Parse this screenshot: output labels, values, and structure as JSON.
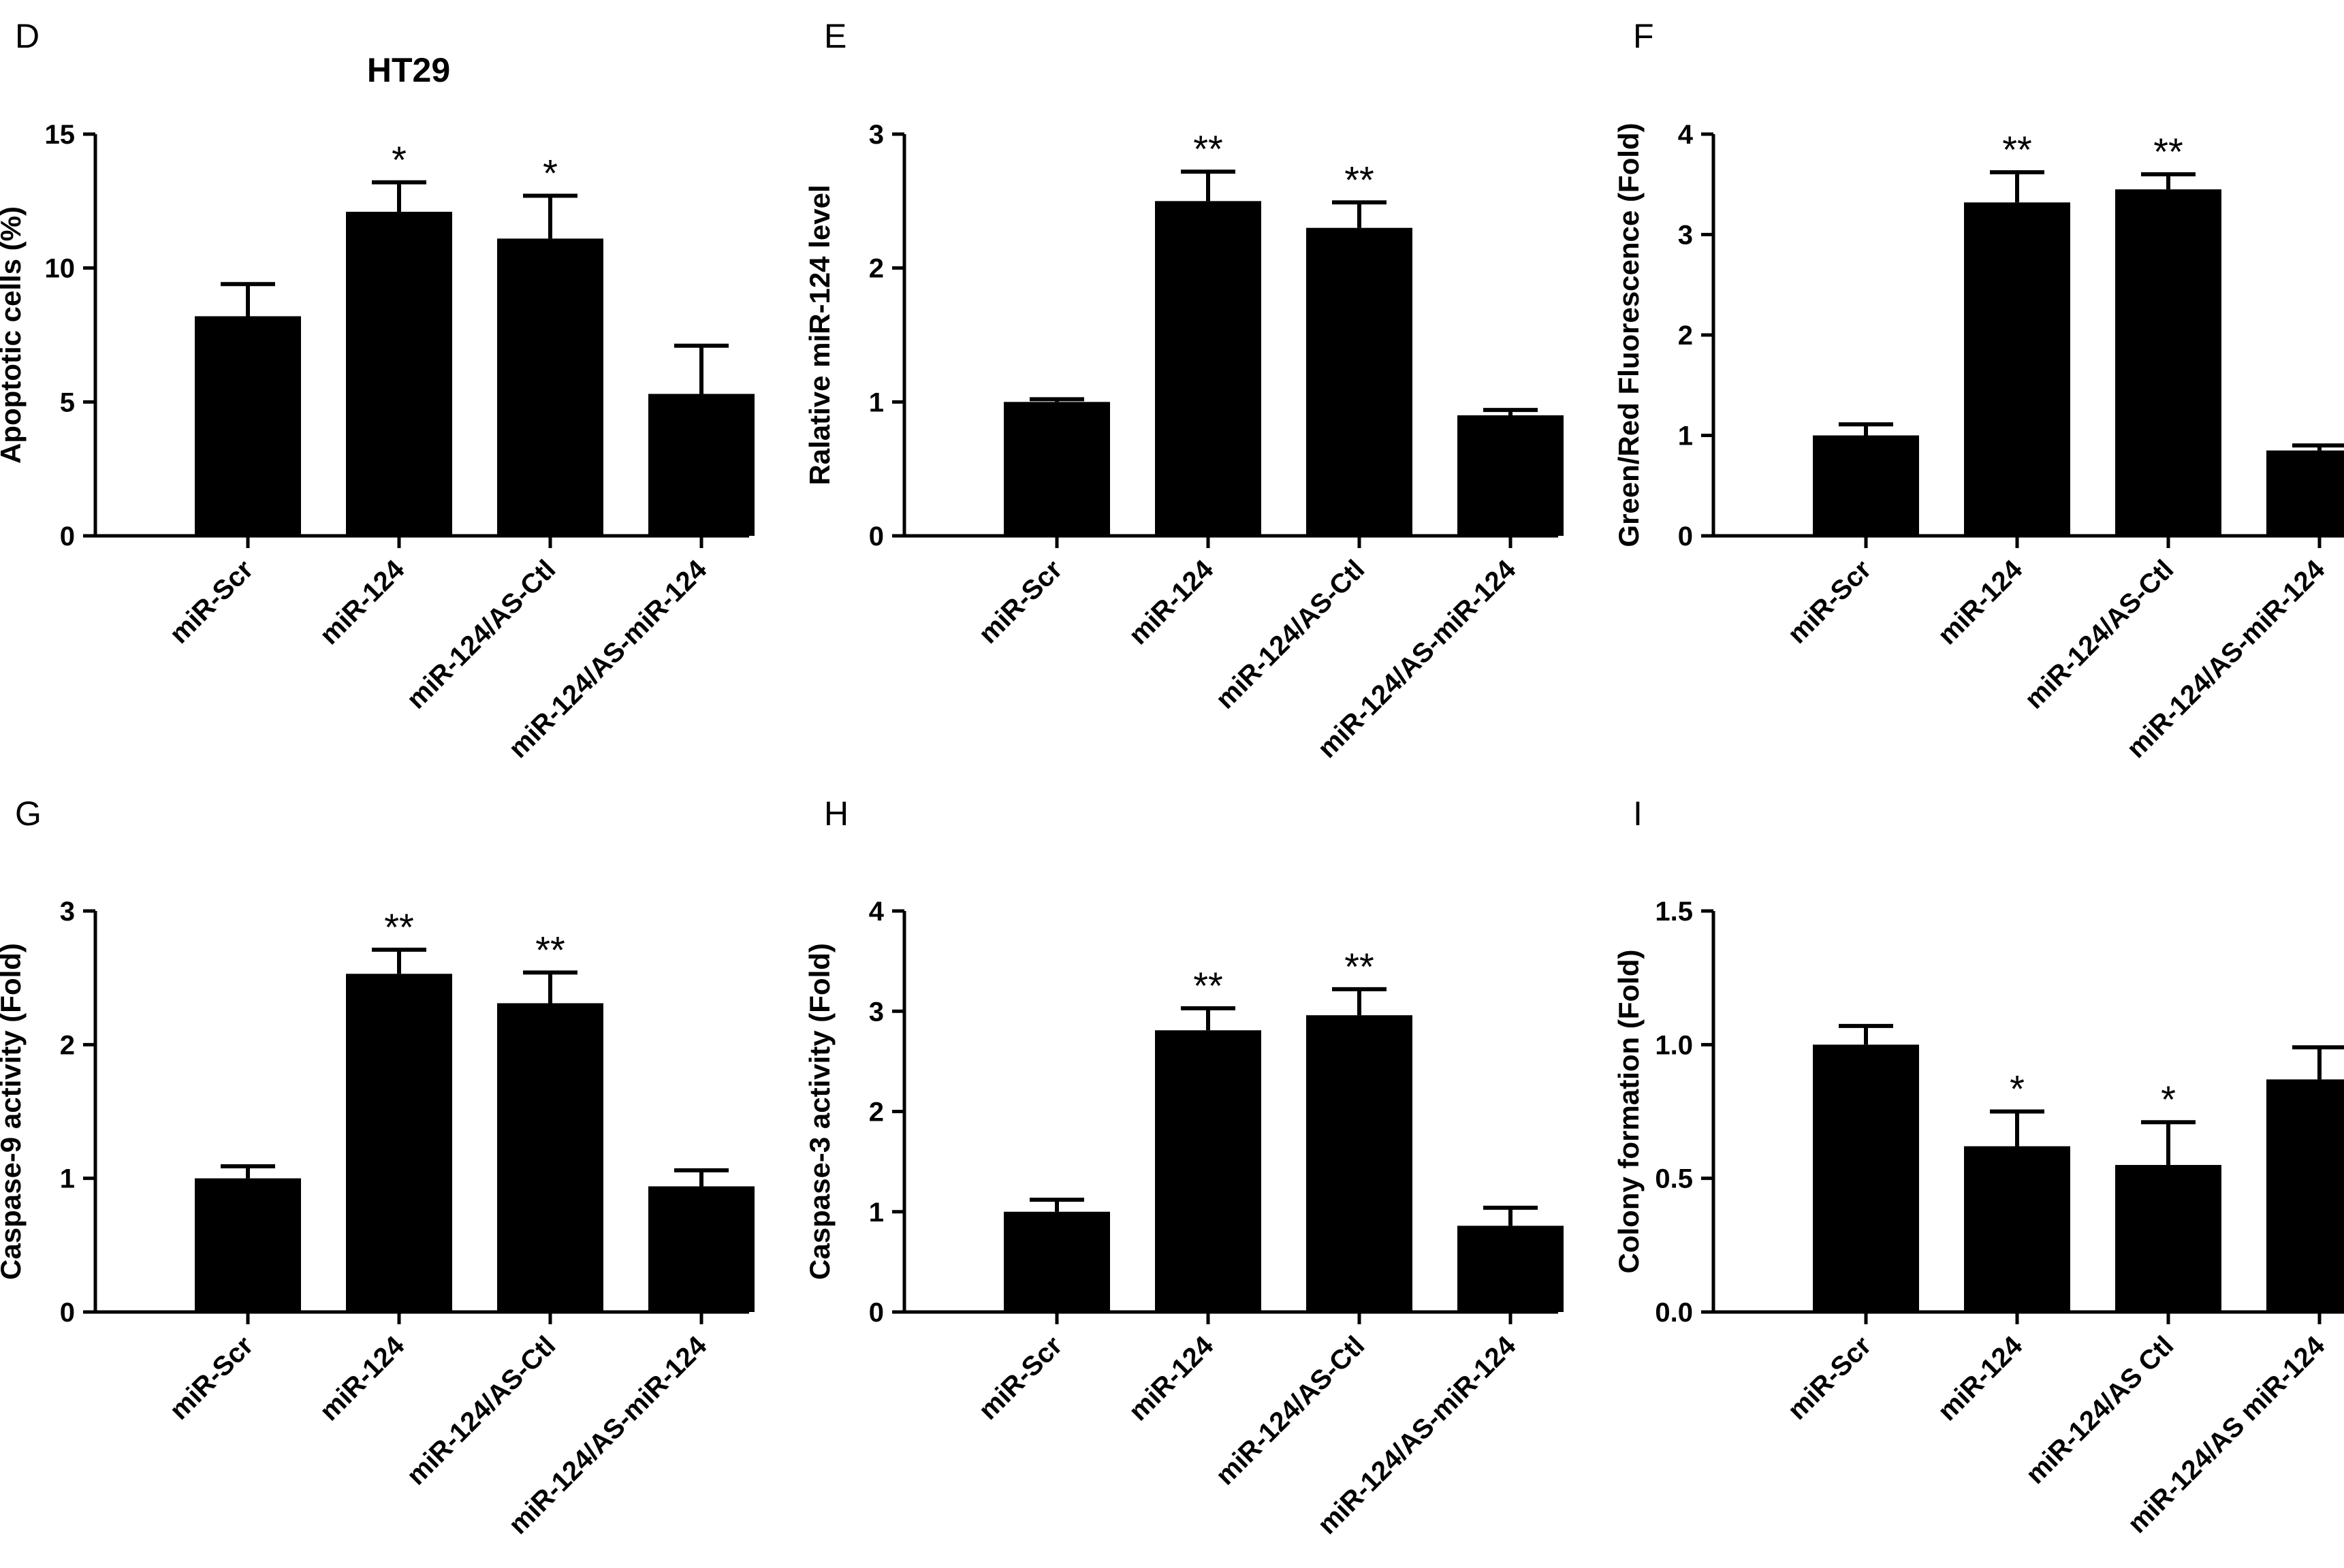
{
  "chart_data": [
    {
      "panel_letter": "D",
      "title": "HT29",
      "type": "bar",
      "ylabel": "Apoptotic cells (%)",
      "xlabel": "",
      "ylim": [
        0,
        15
      ],
      "yticks": [
        "0",
        "5",
        "10",
        "15"
      ],
      "categories": [
        "miR-Scr",
        "miR-124",
        "miR-124/AS-Ctl",
        "miR-124/AS-miR-124"
      ],
      "values": [
        8.2,
        12.1,
        11.1,
        5.3
      ],
      "errors": [
        1.2,
        1.1,
        1.6,
        1.8
      ],
      "annotations": [
        "",
        "*",
        "*",
        ""
      ]
    },
    {
      "panel_letter": "E",
      "title": "",
      "type": "bar",
      "ylabel": "Ralative miR-124 level",
      "xlabel": "",
      "ylim": [
        0,
        3
      ],
      "yticks": [
        "0",
        "1",
        "2",
        "3"
      ],
      "categories": [
        "miR-Scr",
        "miR-124",
        "miR-124/AS-Ctl",
        "miR-124/AS-miR-124"
      ],
      "values": [
        1.0,
        2.5,
        2.3,
        0.9
      ],
      "errors": [
        0.02,
        0.22,
        0.19,
        0.04
      ],
      "annotations": [
        "",
        "**",
        "**",
        ""
      ]
    },
    {
      "panel_letter": "F",
      "title": "",
      "type": "bar",
      "ylabel": "Green/Red Fluorescence (Fold)",
      "xlabel": "",
      "ylim": [
        0,
        4
      ],
      "yticks": [
        "0",
        "1",
        "2",
        "3",
        "4"
      ],
      "categories": [
        "miR-Scr",
        "miR-124",
        "miR-124/AS-Ctl",
        "miR-124/AS-miR-124"
      ],
      "values": [
        1.0,
        3.32,
        3.45,
        0.85
      ],
      "errors": [
        0.11,
        0.3,
        0.15,
        0.05
      ],
      "annotations": [
        "",
        "**",
        "**",
        ""
      ]
    },
    {
      "panel_letter": "G",
      "title": "",
      "type": "bar",
      "ylabel": "Caspase-9 activity (Fold)",
      "xlabel": "",
      "ylim": [
        0,
        3
      ],
      "yticks": [
        "0",
        "1",
        "2",
        "3"
      ],
      "categories": [
        "miR-Scr",
        "miR-124",
        "miR-124/AS-Ctl",
        "miR-124/AS-miR-124"
      ],
      "values": [
        1.0,
        2.53,
        2.31,
        0.94
      ],
      "errors": [
        0.09,
        0.18,
        0.23,
        0.12
      ],
      "annotations": [
        "",
        "**",
        "**",
        ""
      ]
    },
    {
      "panel_letter": "H",
      "title": "",
      "type": "bar",
      "ylabel": "Caspase-3 activity (Fold)",
      "xlabel": "",
      "ylim": [
        0,
        4
      ],
      "yticks": [
        "0",
        "1",
        "2",
        "3",
        "4"
      ],
      "categories": [
        "miR-Scr",
        "miR-124",
        "miR-124/AS-Ctl",
        "miR-124/AS-miR-124"
      ],
      "values": [
        1.0,
        2.81,
        2.96,
        0.86
      ],
      "errors": [
        0.12,
        0.22,
        0.26,
        0.18
      ],
      "annotations": [
        "",
        "**",
        "**",
        ""
      ]
    },
    {
      "panel_letter": "I",
      "title": "",
      "type": "bar",
      "ylabel": "Colony formation (Fold)",
      "xlabel": "",
      "ylim": [
        0,
        1.5
      ],
      "yticks": [
        "0.0",
        "0.5",
        "1.0",
        "1.5"
      ],
      "categories": [
        "miR-Scr",
        "miR-124",
        "miR-124/AS Ctl",
        "miR-124/AS miR-124"
      ],
      "values": [
        1.0,
        0.62,
        0.55,
        0.87
      ],
      "errors": [
        0.07,
        0.13,
        0.16,
        0.12
      ],
      "annotations": [
        "",
        "*",
        "*",
        ""
      ]
    }
  ],
  "colors": {
    "bar": "#000000",
    "axis": "#000000",
    "background": "#ffffff"
  }
}
